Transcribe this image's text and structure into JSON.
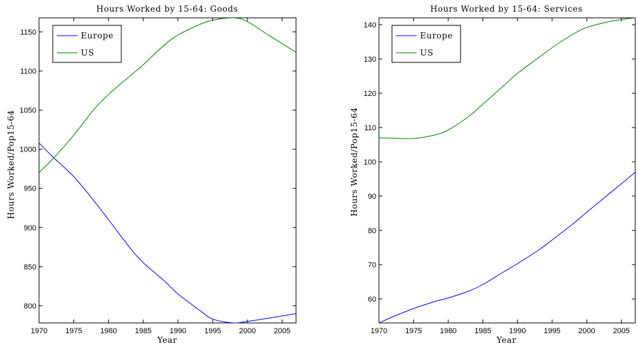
{
  "chart_data": [
    {
      "type": "line",
      "title": "Hours Worked by 15-64: Goods",
      "xlabel": "Year",
      "ylabel": "Hours Worked/Pop15-64",
      "xlim": [
        1970,
        2007
      ],
      "ylim": [
        778,
        1168
      ],
      "xticks": [
        1970,
        1975,
        1980,
        1985,
        1990,
        1995,
        2000,
        2005
      ],
      "yticks": [
        800,
        850,
        900,
        950,
        1000,
        1050,
        1100,
        1150
      ],
      "grid": false,
      "legend_position": "top-left",
      "x": [
        1970,
        1972,
        1975,
        1978,
        1980,
        1983,
        1985,
        1988,
        1990,
        1993,
        1995,
        1998,
        2000,
        2003,
        2005,
        2007
      ],
      "series": [
        {
          "name": "Europe",
          "color": "#0000ff",
          "values": [
            1008,
            990,
            965,
            933,
            910,
            875,
            855,
            832,
            815,
            795,
            783,
            778,
            780,
            784,
            787,
            790
          ]
        },
        {
          "name": "US",
          "color": "#008000",
          "values": [
            970,
            988,
            1018,
            1052,
            1070,
            1093,
            1108,
            1133,
            1146,
            1159,
            1165,
            1168,
            1163,
            1146,
            1135,
            1124
          ]
        }
      ]
    },
    {
      "type": "line",
      "title": "Hours Worked by 15-64: Services",
      "xlabel": "Year",
      "ylabel": "Hours Worked/Pop15-64",
      "xlim": [
        1970,
        2007
      ],
      "ylim": [
        53,
        142
      ],
      "xticks": [
        1970,
        1975,
        1980,
        1985,
        1990,
        1995,
        2000,
        2005
      ],
      "yticks": [
        60,
        70,
        80,
        90,
        100,
        110,
        120,
        130,
        140
      ],
      "grid": false,
      "legend_position": "top-left",
      "x": [
        1970,
        1972,
        1975,
        1978,
        1980,
        1983,
        1985,
        1988,
        1990,
        1993,
        1995,
        1998,
        2000,
        2003,
        2005,
        2007
      ],
      "series": [
        {
          "name": "Europe",
          "color": "#0000ff",
          "values": [
            53,
            54.8,
            57.2,
            59.2,
            60.3,
            62.3,
            64.2,
            67.9,
            70.3,
            74.2,
            77.2,
            81.9,
            85.3,
            90.3,
            93.6,
            97
          ]
        },
        {
          "name": "US",
          "color": "#008000",
          "values": [
            107,
            106.9,
            106.8,
            107.8,
            109.3,
            113.3,
            116.8,
            122.2,
            125.8,
            130.3,
            133.3,
            137.2,
            139.2,
            140.8,
            141.5,
            142
          ]
        }
      ]
    }
  ]
}
